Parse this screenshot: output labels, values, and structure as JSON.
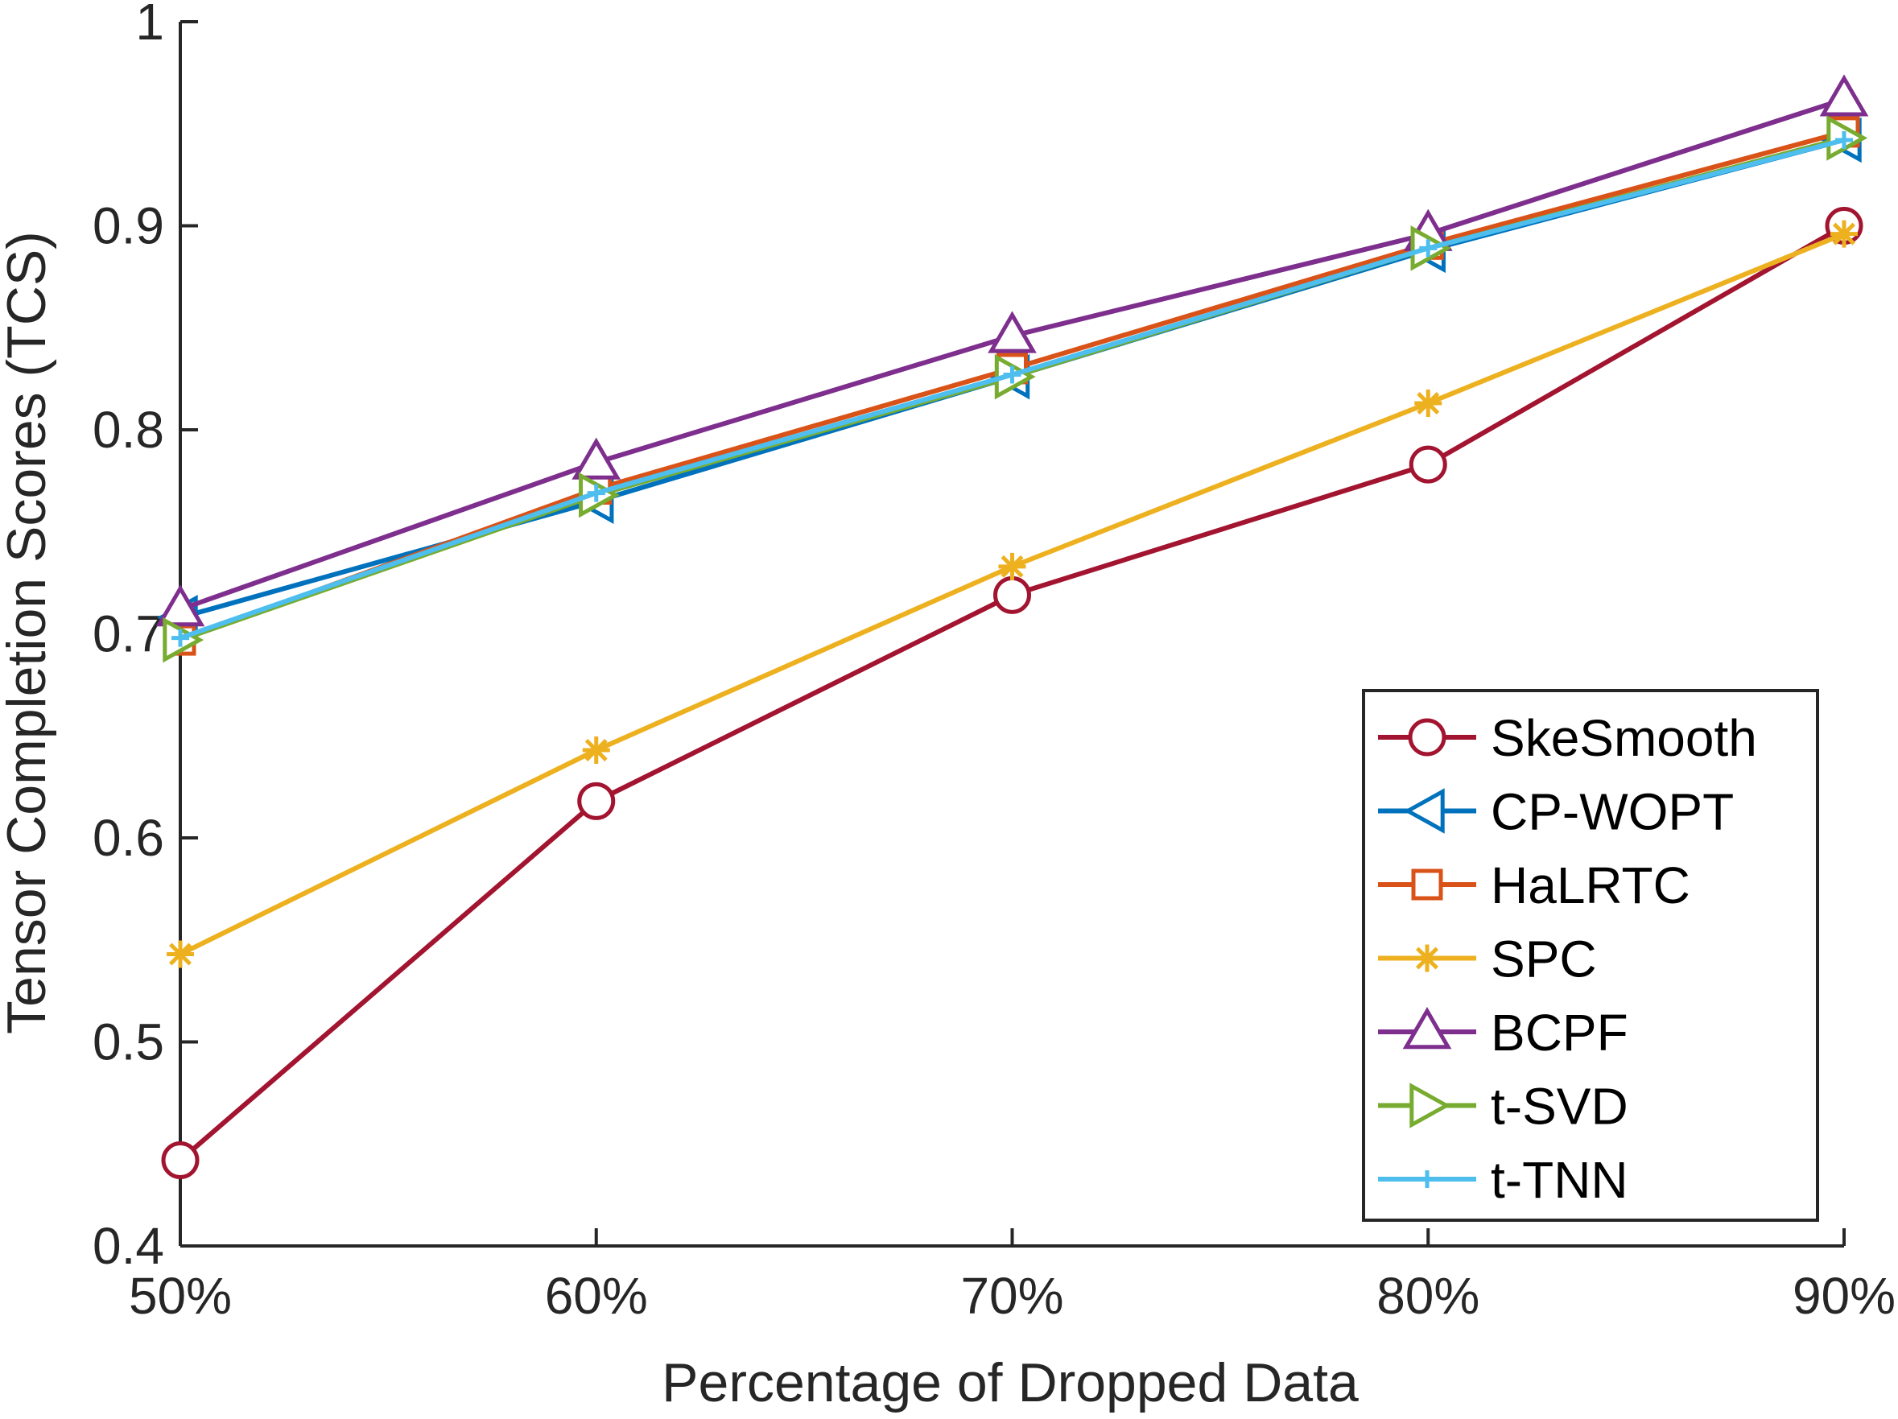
{
  "chart_data": {
    "type": "line",
    "title": "",
    "xlabel": "Percentage of Dropped Data",
    "ylabel": "Tensor Completion Scores (TCS)",
    "categories": [
      "50%",
      "60%",
      "70%",
      "80%",
      "90%"
    ],
    "x": [
      50,
      60,
      70,
      80,
      90
    ],
    "ylim": [
      0.4,
      1.0
    ],
    "yticks": [
      "0.4",
      "0.5",
      "0.6",
      "0.7",
      "0.8",
      "0.9",
      "1"
    ],
    "yticks_values": [
      0.4,
      0.5,
      0.6,
      0.7,
      0.8,
      0.9,
      1.0
    ],
    "grid": false,
    "legend_position": "bottom-right",
    "series": [
      {
        "name": "SkeSmooth",
        "color": "#A2142F",
        "marker": "circle",
        "values": [
          0.442,
          0.618,
          0.719,
          0.783,
          0.9
        ]
      },
      {
        "name": "CP-WOPT",
        "color": "#0072BD",
        "marker": "triangle-left",
        "values": [
          0.708,
          0.765,
          0.826,
          0.888,
          0.942
        ]
      },
      {
        "name": "HaLRTC",
        "color": "#D95319",
        "marker": "square",
        "values": [
          0.697,
          0.771,
          0.83,
          0.891,
          0.946
        ]
      },
      {
        "name": "SPC",
        "color": "#EDB120",
        "marker": "asterisk",
        "values": [
          0.543,
          0.643,
          0.733,
          0.813,
          0.896
        ]
      },
      {
        "name": "BCPF",
        "color": "#7E2F8E",
        "marker": "triangle-up",
        "values": [
          0.712,
          0.784,
          0.846,
          0.896,
          0.962
        ]
      },
      {
        "name": "t-SVD",
        "color": "#77AC30",
        "marker": "triangle-right",
        "values": [
          0.697,
          0.768,
          0.826,
          0.889,
          0.943
        ]
      },
      {
        "name": "t-TNN",
        "color": "#4DBEEE",
        "marker": "plus",
        "values": [
          0.698,
          0.769,
          0.827,
          0.889,
          0.942
        ]
      }
    ]
  }
}
